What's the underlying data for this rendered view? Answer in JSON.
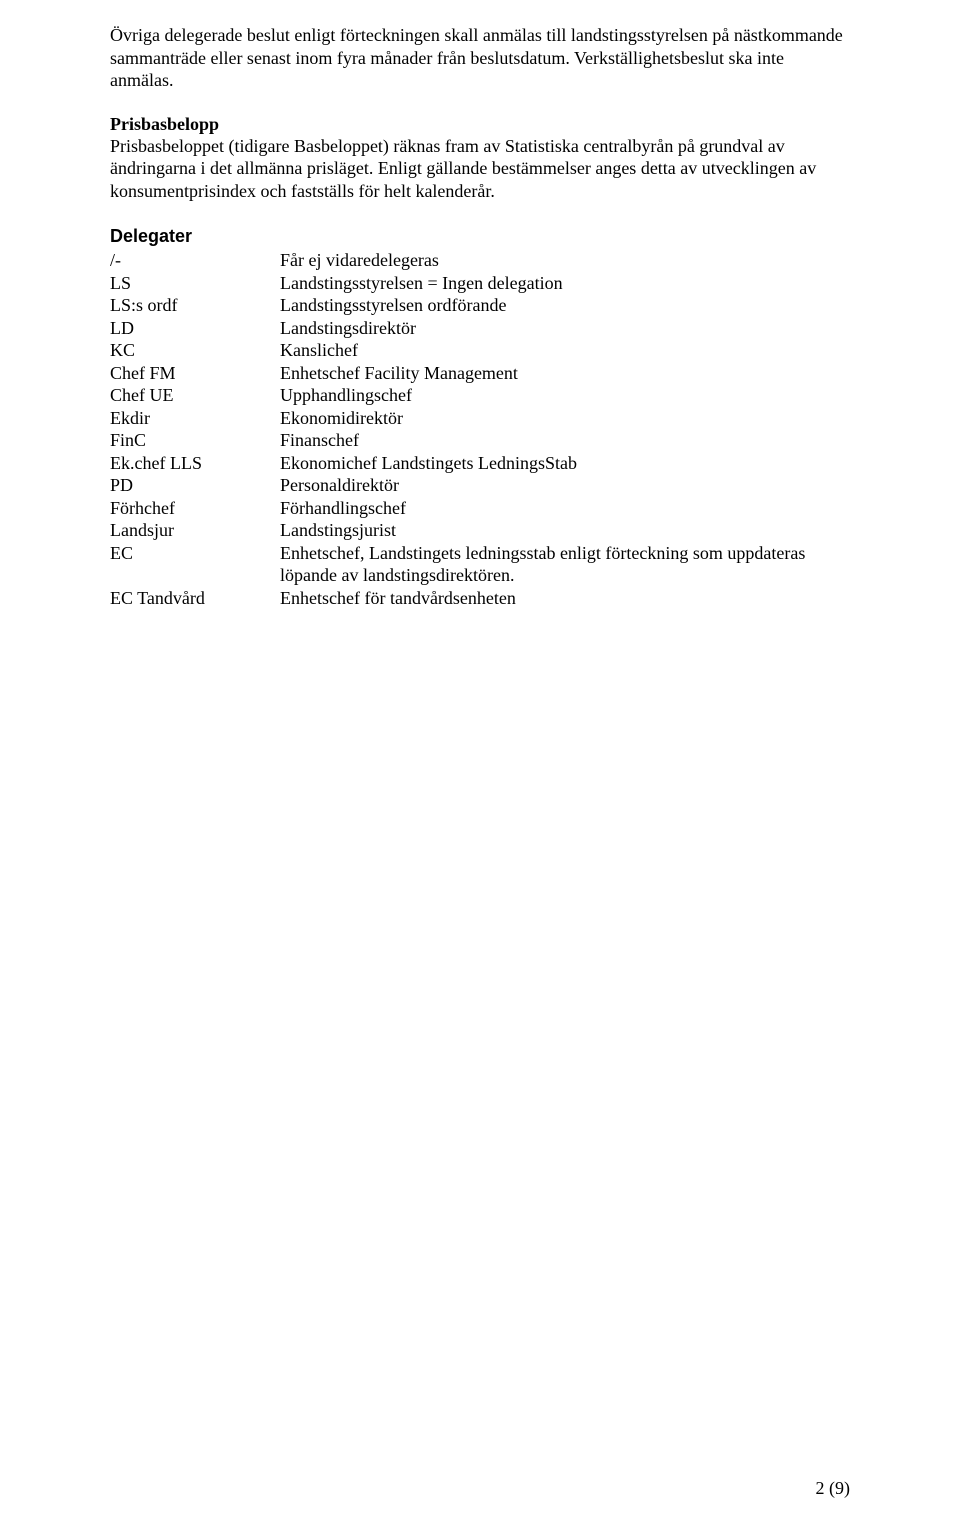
{
  "paragraphs": {
    "p1": "Övriga delegerade beslut enligt förteckningen skall anmälas till landstingsstyrelsen på nästkommande sammanträde eller senast inom fyra månader från beslutsdatum. Verkställighetsbeslut ska inte anmälas.",
    "h1": "Prisbasbelopp",
    "p2": "Prisbasbeloppet (tidigare Basbeloppet) räknas fram av Statistiska centralbyrån på grundval av ändringarna i det allmänna prisläget. Enligt gällande bestämmelser anges detta av utvecklingen av konsumentprisindex och fastställs för helt kalenderår.",
    "h2": "Delegater"
  },
  "definitions": [
    {
      "term": "/-",
      "value": "Får ej vidaredelegeras"
    },
    {
      "term": "LS",
      "value": "Landstingsstyrelsen = Ingen delegation"
    },
    {
      "term": "LS:s ordf",
      "value": "Landstingsstyrelsen ordförande"
    },
    {
      "term": "LD",
      "value": "Landstingsdirektör"
    },
    {
      "term": "KC",
      "value": "Kanslichef"
    },
    {
      "term": "Chef FM",
      "value": "Enhetschef Facility Management"
    },
    {
      "term": "Chef UE",
      "value": "Upphandlingschef"
    },
    {
      "term": "Ekdir",
      "value": "Ekonomidirektör"
    },
    {
      "term": "FinC",
      "value": "Finanschef"
    },
    {
      "term": "Ek.chef LLS",
      "value": "Ekonomichef Landstingets LedningsStab"
    },
    {
      "term": "PD",
      "value": "Personaldirektör"
    },
    {
      "term": "Förhchef",
      "value": "Förhandlingschef"
    },
    {
      "term": "Landsjur",
      "value": "Landstingsjurist"
    },
    {
      "term": "EC",
      "value": "Enhetschef, Landstingets ledningsstab enligt förteckning som uppdateras löpande av landstingsdirektören."
    },
    {
      "term": "EC Tandvård",
      "value": "Enhetschef för tandvårdsenheten"
    }
  ],
  "page_number": "2 (9)"
}
